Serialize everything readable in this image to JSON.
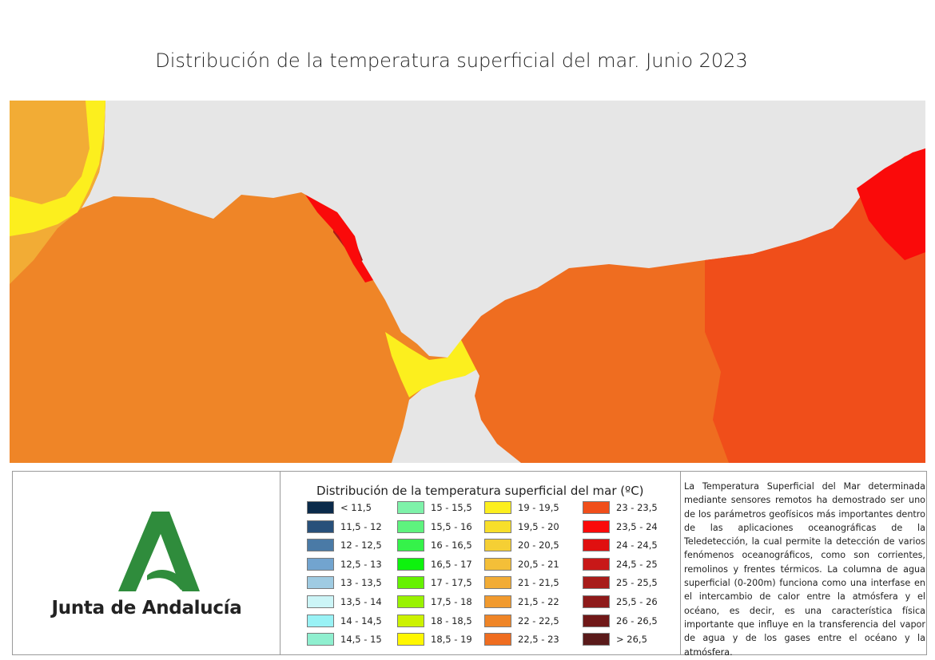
{
  "title": "Distribución de la temperatura superficial del mar. Junio 2023",
  "legend": {
    "title": "Distribución de la temperatura superficial del mar (ºC)",
    "items": [
      {
        "label": "< 11,5",
        "color": "#0a2a4a"
      },
      {
        "label": "11,5 - 12",
        "color": "#28507a"
      },
      {
        "label": "12 - 12,5",
        "color": "#4a7aa6"
      },
      {
        "label": "12,5 - 13",
        "color": "#72a4cf"
      },
      {
        "label": "13 - 13,5",
        "color": "#9fcbe2"
      },
      {
        "label": "13,5 - 14",
        "color": "#ccf5f7"
      },
      {
        "label": "14 - 14,5",
        "color": "#99f2f5"
      },
      {
        "label": "14,5 - 15",
        "color": "#8fefcf"
      },
      {
        "label": "15 - 15,5",
        "color": "#7ef2a9"
      },
      {
        "label": "15,5 - 16",
        "color": "#5ef37e"
      },
      {
        "label": "16 - 16,5",
        "color": "#35f24a"
      },
      {
        "label": "16,5 - 17",
        "color": "#0ef20e"
      },
      {
        "label": "17 - 17,5",
        "color": "#66f200"
      },
      {
        "label": "17,5 - 18",
        "color": "#99f200"
      },
      {
        "label": "18 - 18,5",
        "color": "#ccf200"
      },
      {
        "label": "18,5 - 19",
        "color": "#fff700"
      },
      {
        "label": "19 - 19,5",
        "color": "#fcef1e"
      },
      {
        "label": "19,5 - 20",
        "color": "#f8df2a"
      },
      {
        "label": "20 - 20,5",
        "color": "#f5cf34"
      },
      {
        "label": "20,5 - 21",
        "color": "#f4bf38"
      },
      {
        "label": "21 - 21,5",
        "color": "#f2ac35"
      },
      {
        "label": "21,5 - 22",
        "color": "#f19a2e"
      },
      {
        "label": "22 - 22,5",
        "color": "#ef8527"
      },
      {
        "label": "22,5 - 23",
        "color": "#ef6d20"
      },
      {
        "label": "23 - 23,5",
        "color": "#f04e1a"
      },
      {
        "label": "23,5 - 24",
        "color": "#fa0a0a"
      },
      {
        "label": "24 - 24,5",
        "color": "#e01010"
      },
      {
        "label": "24,5 - 25",
        "color": "#c81818"
      },
      {
        "label": "25 - 25,5",
        "color": "#a81c1a"
      },
      {
        "label": "25,5 - 26",
        "color": "#8e1a1a"
      },
      {
        "label": "26 - 26,5",
        "color": "#701818"
      },
      {
        "label": "> 26,5",
        "color": "#5a1a1a"
      }
    ]
  },
  "logo": {
    "text": "Junta de Andalucía",
    "color": "#2f8c3c"
  },
  "description": "La Temperatura Superficial del Mar determinada mediante sensores remotos ha demostrado ser uno de los parámetros geofísicos más importantes dentro de las aplicaciones oceanográficas de la Teledetección, la cual permite la detección de varios fenómenos oceanográficos, como son corrientes, remolinos y frentes térmicos. La columna de agua superficial (0-200m) funciona como una interfase en el intercambio de calor entre la atmósfera y el océano, es decir, es una característica física importante que influye en la transferencia del vapor de agua y de los gases entre el océano y la atmósfera.",
  "map": {
    "land_color": "#e6e6e6",
    "sea_colors": {
      "atlantic_base": "#ef8527",
      "cooler_coast": "#f2ac35",
      "strait": "#fcef1e",
      "mediterranean_base": "#ef6d20",
      "eastern_warm": "#f04e1a",
      "hotspot": "#fa0a0a",
      "deep_hotspot": "#a81c1a"
    }
  }
}
